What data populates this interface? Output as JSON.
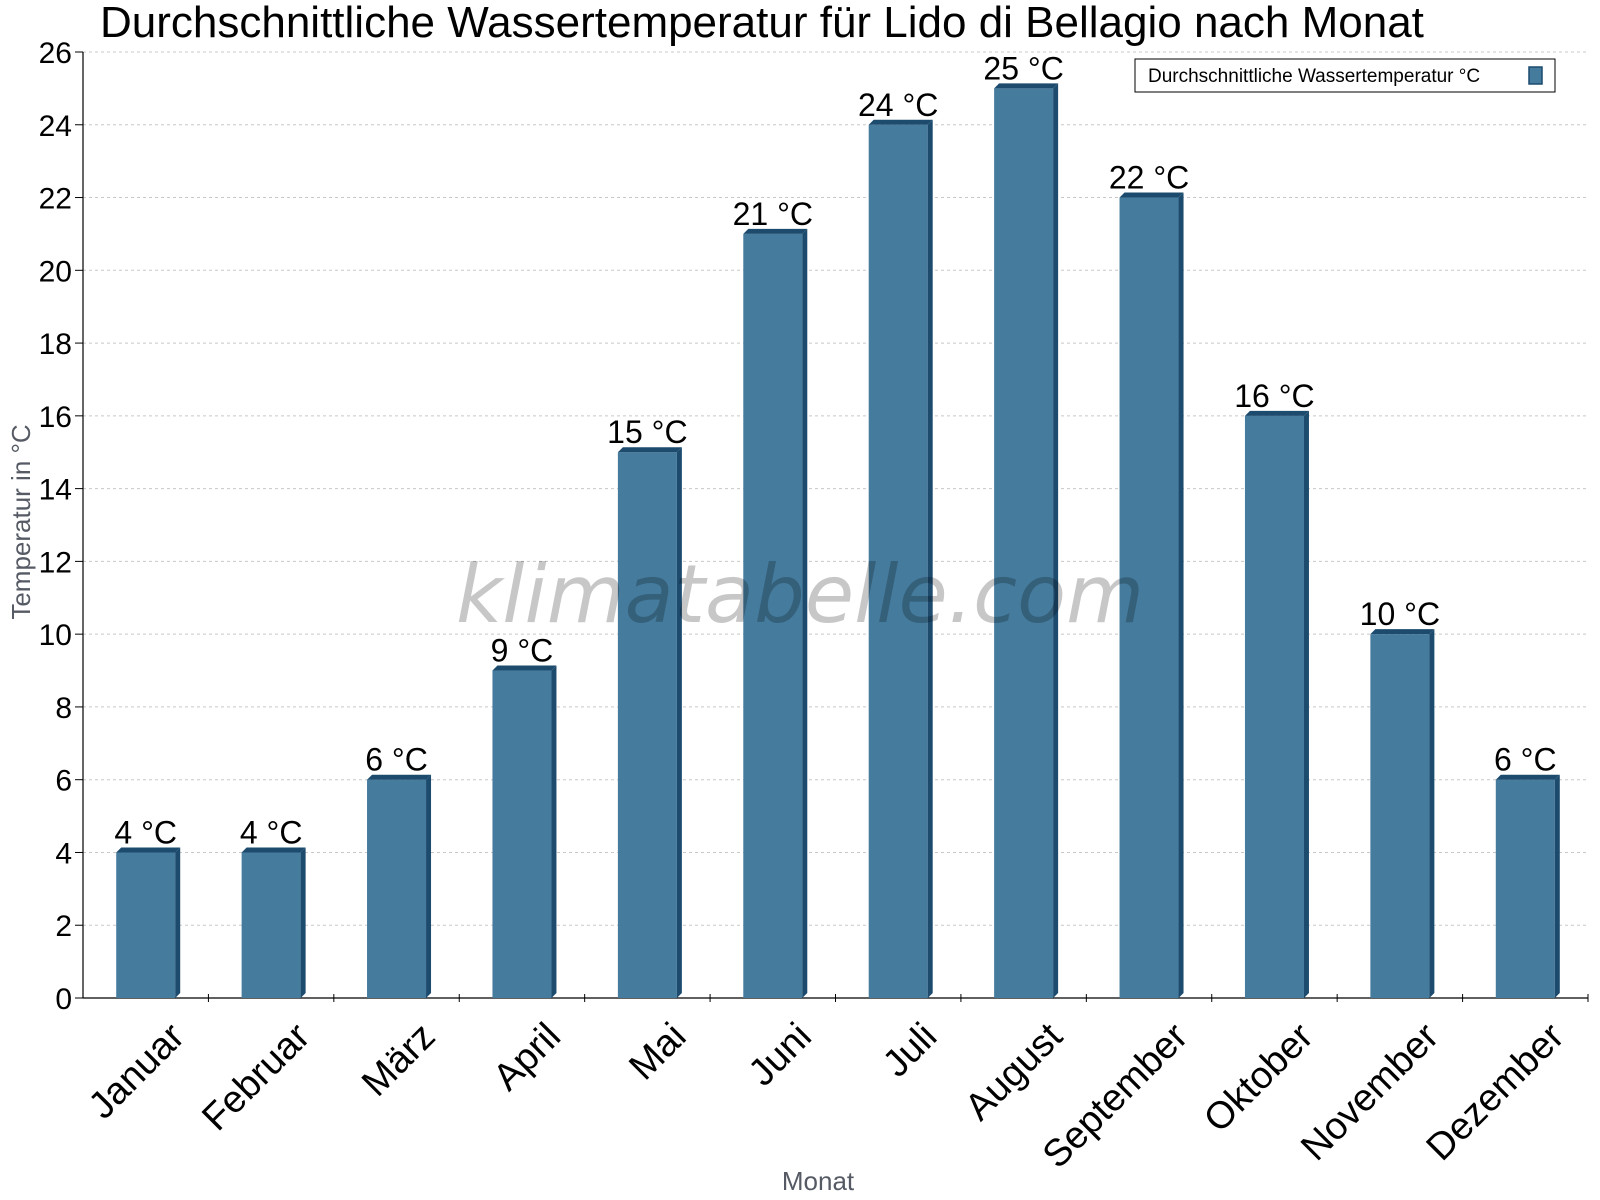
{
  "chart_data": {
    "type": "bar",
    "title": "Durchschnittliche Wassertemperatur für Lido di Bellagio nach Monat",
    "xlabel": "Monat",
    "ylabel": "Temperatur in °C",
    "categories": [
      "Januar",
      "Februar",
      "März",
      "April",
      "Mai",
      "Juni",
      "Juli",
      "August",
      "September",
      "Oktober",
      "November",
      "Dezember"
    ],
    "series": [
      {
        "name": "Durchschnittliche Wassertemperatur °C",
        "values": [
          4,
          4,
          6,
          9,
          15,
          21,
          24,
          25,
          22,
          16,
          10,
          6
        ],
        "data_labels": [
          "4 °C",
          "4 °C",
          "6 °C",
          "9 °C",
          "15 °C",
          "21 °C",
          "24 °C",
          "25 °C",
          "22 °C",
          "16 °C",
          "10 °C",
          "6 °C"
        ]
      }
    ],
    "ylim": [
      0,
      26
    ],
    "yticks": [
      0,
      2,
      4,
      6,
      8,
      10,
      12,
      14,
      16,
      18,
      20,
      22,
      24,
      26
    ],
    "grid": true,
    "legend_position": "top-right",
    "watermark": "klimatabelle.com",
    "colors": {
      "bar": "#457b9d",
      "bar_side": "#1d4b6e",
      "bar_top": "#1d4b6e",
      "grid": "#c8c8c8"
    }
  }
}
